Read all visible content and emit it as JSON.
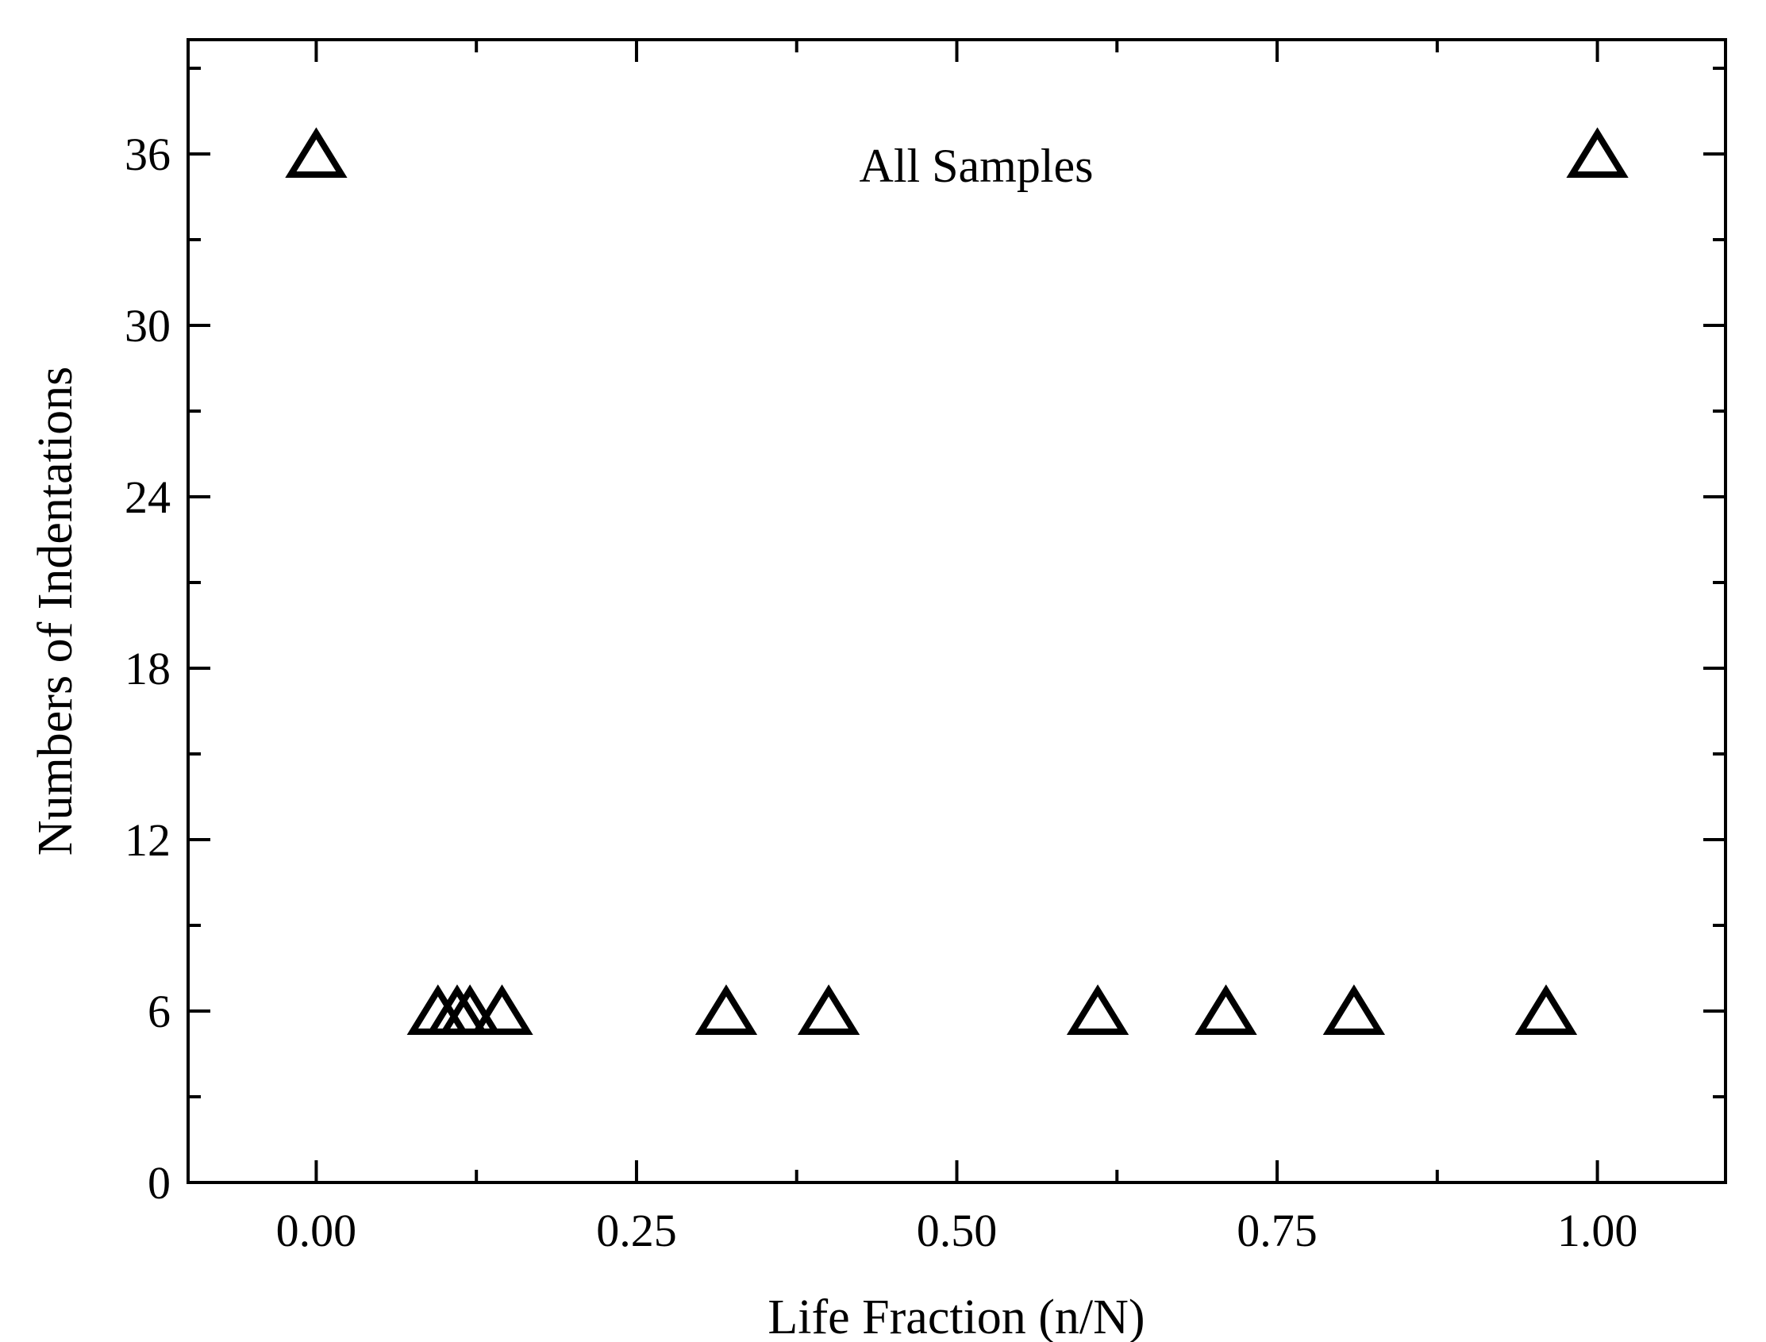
{
  "chart_data": {
    "type": "scatter",
    "title": "",
    "annotation": "All Samples",
    "xlabel": "Life Fraction (n/N)",
    "ylabel": "Numbers of Indentations",
    "xlim": [
      -0.1,
      1.1
    ],
    "ylim": [
      0,
      40
    ],
    "x_ticks": [
      0.0,
      0.25,
      0.5,
      0.75,
      1.0
    ],
    "x_tick_labels": [
      "0.00",
      "0.25",
      "0.50",
      "0.75",
      "1.00"
    ],
    "x_minor_step": 0.125,
    "y_ticks": [
      0,
      6,
      12,
      18,
      24,
      30,
      36
    ],
    "y_tick_labels": [
      "0",
      "6",
      "12",
      "18",
      "24",
      "30",
      "36"
    ],
    "y_minor_step": 3,
    "grid": false,
    "marker": "open-triangle",
    "color": "#000000",
    "points": [
      {
        "x": 0.0,
        "y": 36
      },
      {
        "x": 0.095,
        "y": 6
      },
      {
        "x": 0.11,
        "y": 6
      },
      {
        "x": 0.12,
        "y": 6
      },
      {
        "x": 0.145,
        "y": 6
      },
      {
        "x": 0.32,
        "y": 6
      },
      {
        "x": 0.4,
        "y": 6
      },
      {
        "x": 0.61,
        "y": 6
      },
      {
        "x": 0.71,
        "y": 6
      },
      {
        "x": 0.81,
        "y": 6
      },
      {
        "x": 0.96,
        "y": 6
      },
      {
        "x": 1.0,
        "y": 36
      }
    ]
  }
}
